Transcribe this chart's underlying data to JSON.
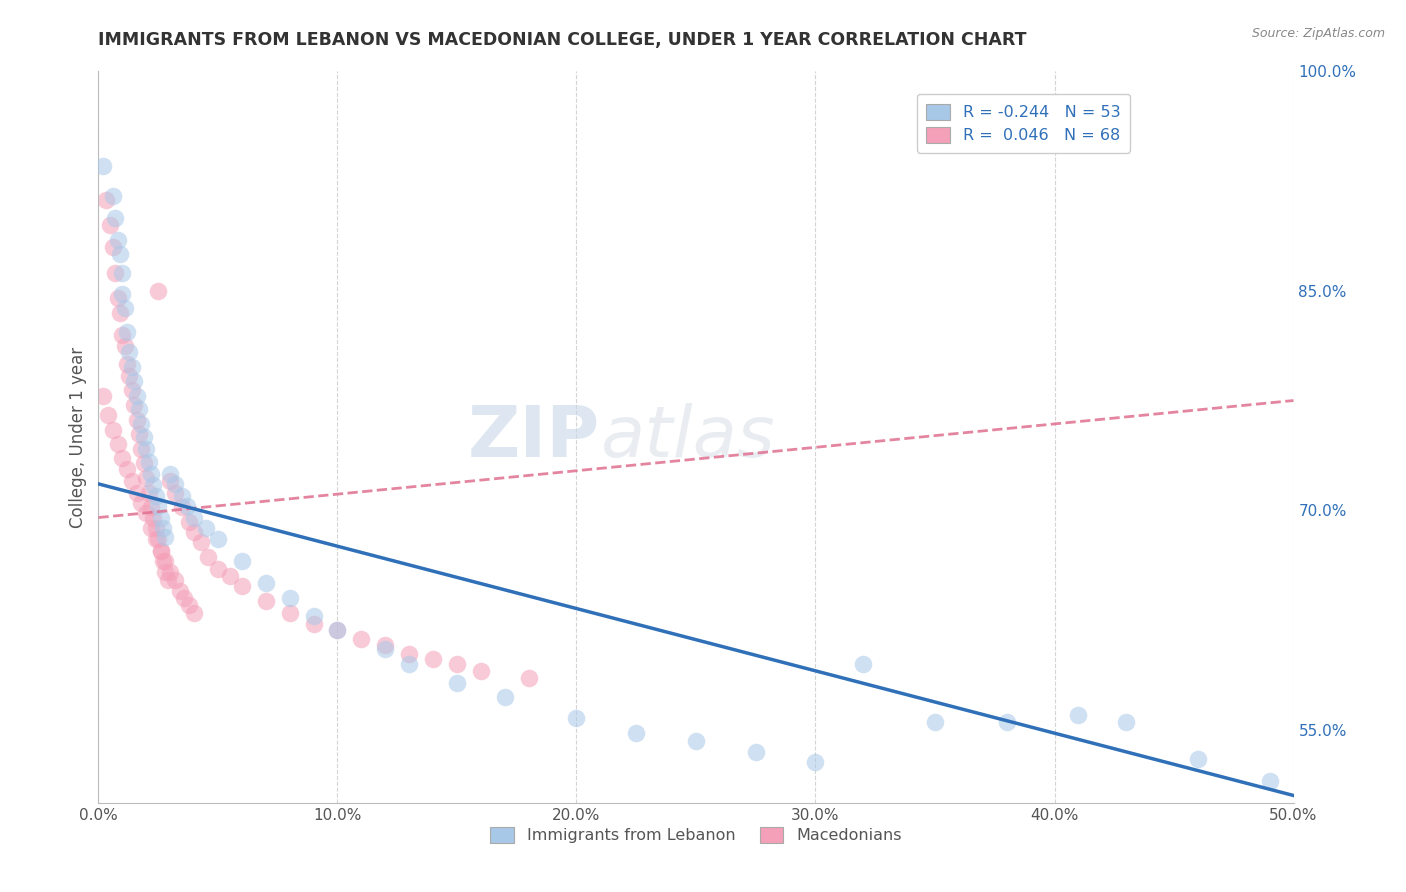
{
  "title": "IMMIGRANTS FROM LEBANON VS MACEDONIAN COLLEGE, UNDER 1 YEAR CORRELATION CHART",
  "source_text": "Source: ZipAtlas.com",
  "ylabel": "College, Under 1 year",
  "xlim": [
    0.0,
    0.5
  ],
  "ylim": [
    0.5,
    1.0
  ],
  "xticks": [
    0.0,
    0.1,
    0.2,
    0.3,
    0.4,
    0.5
  ],
  "xtick_labels": [
    "0.0%",
    "10.0%",
    "20.0%",
    "30.0%",
    "40.0%",
    "50.0%"
  ],
  "right_yticks": [
    0.55,
    0.7,
    0.85,
    1.0
  ],
  "right_ytick_labels": [
    "55.0%",
    "70.0%",
    "85.0%",
    "100.0%"
  ],
  "legend_label1": "R = -0.244   N = 53",
  "legend_label2": "R =  0.046   N = 68",
  "blue_color": "#a8c8e8",
  "pink_color": "#f4a0b8",
  "blue_line_color": "#3070b8",
  "pink_line_color": "#e07090",
  "grid_color": "#d0d0d0",
  "background_color": "#ffffff",
  "watermark_zip": "ZIP",
  "watermark_atlas": "atlas",
  "blue_points": [
    [
      0.002,
      0.935
    ],
    [
      0.006,
      0.915
    ],
    [
      0.007,
      0.9
    ],
    [
      0.008,
      0.885
    ],
    [
      0.009,
      0.875
    ],
    [
      0.01,
      0.862
    ],
    [
      0.01,
      0.848
    ],
    [
      0.011,
      0.838
    ],
    [
      0.012,
      0.822
    ],
    [
      0.013,
      0.808
    ],
    [
      0.014,
      0.798
    ],
    [
      0.015,
      0.788
    ],
    [
      0.016,
      0.778
    ],
    [
      0.017,
      0.769
    ],
    [
      0.018,
      0.759
    ],
    [
      0.019,
      0.75
    ],
    [
      0.02,
      0.742
    ],
    [
      0.021,
      0.733
    ],
    [
      0.022,
      0.725
    ],
    [
      0.023,
      0.717
    ],
    [
      0.024,
      0.71
    ],
    [
      0.025,
      0.703
    ],
    [
      0.026,
      0.695
    ],
    [
      0.027,
      0.688
    ],
    [
      0.028,
      0.682
    ],
    [
      0.03,
      0.725
    ],
    [
      0.032,
      0.718
    ],
    [
      0.035,
      0.71
    ],
    [
      0.037,
      0.703
    ],
    [
      0.04,
      0.695
    ],
    [
      0.045,
      0.688
    ],
    [
      0.05,
      0.68
    ],
    [
      0.06,
      0.665
    ],
    [
      0.07,
      0.65
    ],
    [
      0.08,
      0.64
    ],
    [
      0.09,
      0.628
    ],
    [
      0.1,
      0.618
    ],
    [
      0.12,
      0.605
    ],
    [
      0.13,
      0.595
    ],
    [
      0.15,
      0.582
    ],
    [
      0.17,
      0.572
    ],
    [
      0.2,
      0.558
    ],
    [
      0.225,
      0.548
    ],
    [
      0.25,
      0.542
    ],
    [
      0.275,
      0.535
    ],
    [
      0.3,
      0.528
    ],
    [
      0.32,
      0.595
    ],
    [
      0.35,
      0.555
    ],
    [
      0.38,
      0.555
    ],
    [
      0.41,
      0.56
    ],
    [
      0.43,
      0.555
    ],
    [
      0.46,
      0.53
    ],
    [
      0.49,
      0.515
    ]
  ],
  "pink_points": [
    [
      0.003,
      0.912
    ],
    [
      0.005,
      0.895
    ],
    [
      0.006,
      0.88
    ],
    [
      0.007,
      0.862
    ],
    [
      0.008,
      0.845
    ],
    [
      0.009,
      0.835
    ],
    [
      0.01,
      0.82
    ],
    [
      0.011,
      0.812
    ],
    [
      0.012,
      0.8
    ],
    [
      0.013,
      0.792
    ],
    [
      0.014,
      0.782
    ],
    [
      0.015,
      0.772
    ],
    [
      0.016,
      0.762
    ],
    [
      0.017,
      0.752
    ],
    [
      0.018,
      0.742
    ],
    [
      0.019,
      0.732
    ],
    [
      0.02,
      0.722
    ],
    [
      0.021,
      0.712
    ],
    [
      0.022,
      0.702
    ],
    [
      0.023,
      0.695
    ],
    [
      0.024,
      0.688
    ],
    [
      0.025,
      0.68
    ],
    [
      0.026,
      0.672
    ],
    [
      0.027,
      0.665
    ],
    [
      0.028,
      0.658
    ],
    [
      0.029,
      0.652
    ],
    [
      0.03,
      0.72
    ],
    [
      0.032,
      0.712
    ],
    [
      0.035,
      0.702
    ],
    [
      0.038,
      0.692
    ],
    [
      0.04,
      0.685
    ],
    [
      0.043,
      0.678
    ],
    [
      0.046,
      0.668
    ],
    [
      0.05,
      0.66
    ],
    [
      0.055,
      0.655
    ],
    [
      0.06,
      0.648
    ],
    [
      0.07,
      0.638
    ],
    [
      0.08,
      0.63
    ],
    [
      0.09,
      0.622
    ],
    [
      0.1,
      0.618
    ],
    [
      0.11,
      0.612
    ],
    [
      0.12,
      0.608
    ],
    [
      0.13,
      0.602
    ],
    [
      0.14,
      0.598
    ],
    [
      0.15,
      0.595
    ],
    [
      0.16,
      0.59
    ],
    [
      0.18,
      0.585
    ],
    [
      0.02,
      0.698
    ],
    [
      0.022,
      0.688
    ],
    [
      0.024,
      0.68
    ],
    [
      0.026,
      0.672
    ],
    [
      0.028,
      0.665
    ],
    [
      0.03,
      0.658
    ],
    [
      0.032,
      0.652
    ],
    [
      0.034,
      0.645
    ],
    [
      0.036,
      0.64
    ],
    [
      0.038,
      0.635
    ],
    [
      0.04,
      0.63
    ],
    [
      0.018,
      0.705
    ],
    [
      0.016,
      0.712
    ],
    [
      0.014,
      0.72
    ],
    [
      0.012,
      0.728
    ],
    [
      0.01,
      0.736
    ],
    [
      0.008,
      0.745
    ],
    [
      0.006,
      0.755
    ],
    [
      0.004,
      0.765
    ],
    [
      0.002,
      0.778
    ],
    [
      0.025,
      0.85
    ]
  ],
  "blue_line": [
    [
      0.0,
      0.718
    ],
    [
      0.5,
      0.505
    ]
  ],
  "pink_line": [
    [
      0.0,
      0.695
    ],
    [
      0.5,
      0.775
    ]
  ]
}
